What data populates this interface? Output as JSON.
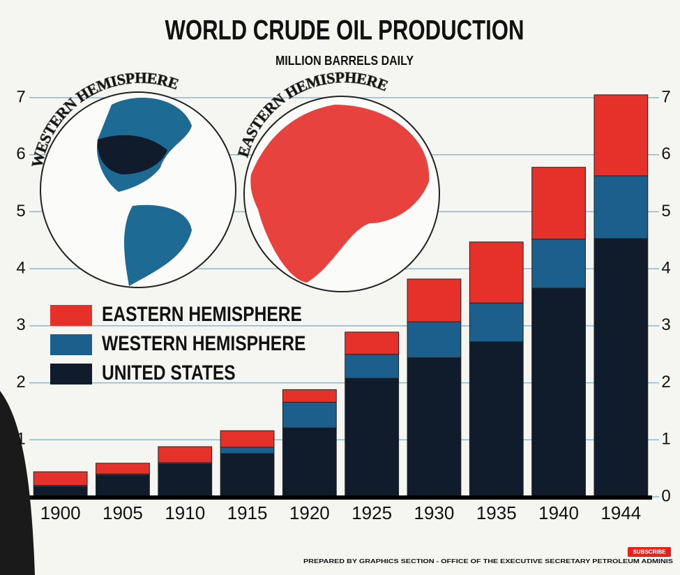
{
  "chart_data": {
    "type": "bar",
    "stacked": true,
    "title": "WORLD CRUDE OIL PRODUCTION",
    "subtitle": "MILLION BARRELS DAILY",
    "categories": [
      "1900",
      "1905",
      "1910",
      "1915",
      "1920",
      "1925",
      "1930",
      "1935",
      "1940",
      "1944"
    ],
    "series": [
      {
        "name": "UNITED STATES",
        "color": "#101c2b",
        "values": [
          0.18,
          0.38,
          0.58,
          0.76,
          1.21,
          2.08,
          2.44,
          2.72,
          3.66,
          4.53
        ]
      },
      {
        "name": "WESTERN HEMISPHERE",
        "color": "#1d5f8c",
        "values": [
          0.02,
          0.02,
          0.02,
          0.11,
          0.45,
          0.42,
          0.63,
          0.68,
          0.86,
          1.1
        ]
      },
      {
        "name": "EASTERN HEMISPHERE",
        "color": "#e5312a",
        "values": [
          0.24,
          0.19,
          0.28,
          0.29,
          0.22,
          0.39,
          0.75,
          1.07,
          1.26,
          1.42
        ]
      }
    ],
    "ylim": [
      0,
      7
    ],
    "yticks": [
      1,
      2,
      3,
      4,
      5,
      6,
      7
    ],
    "y2lim": [
      0,
      7
    ],
    "y2ticks": [
      0,
      1,
      2,
      3,
      4,
      5,
      6,
      7
    ],
    "grid": true,
    "globe_labels": [
      "WESTERN HEMISPHERE",
      "EASTERN HEMISPHERE"
    ],
    "footer": "PREPARED BY GRAPHICS SECTION  -  OFFICE OF THE EXECUTIVE SECRETARY      PETROLEUM ADMINIS",
    "button": "SUBSCRIBE"
  }
}
